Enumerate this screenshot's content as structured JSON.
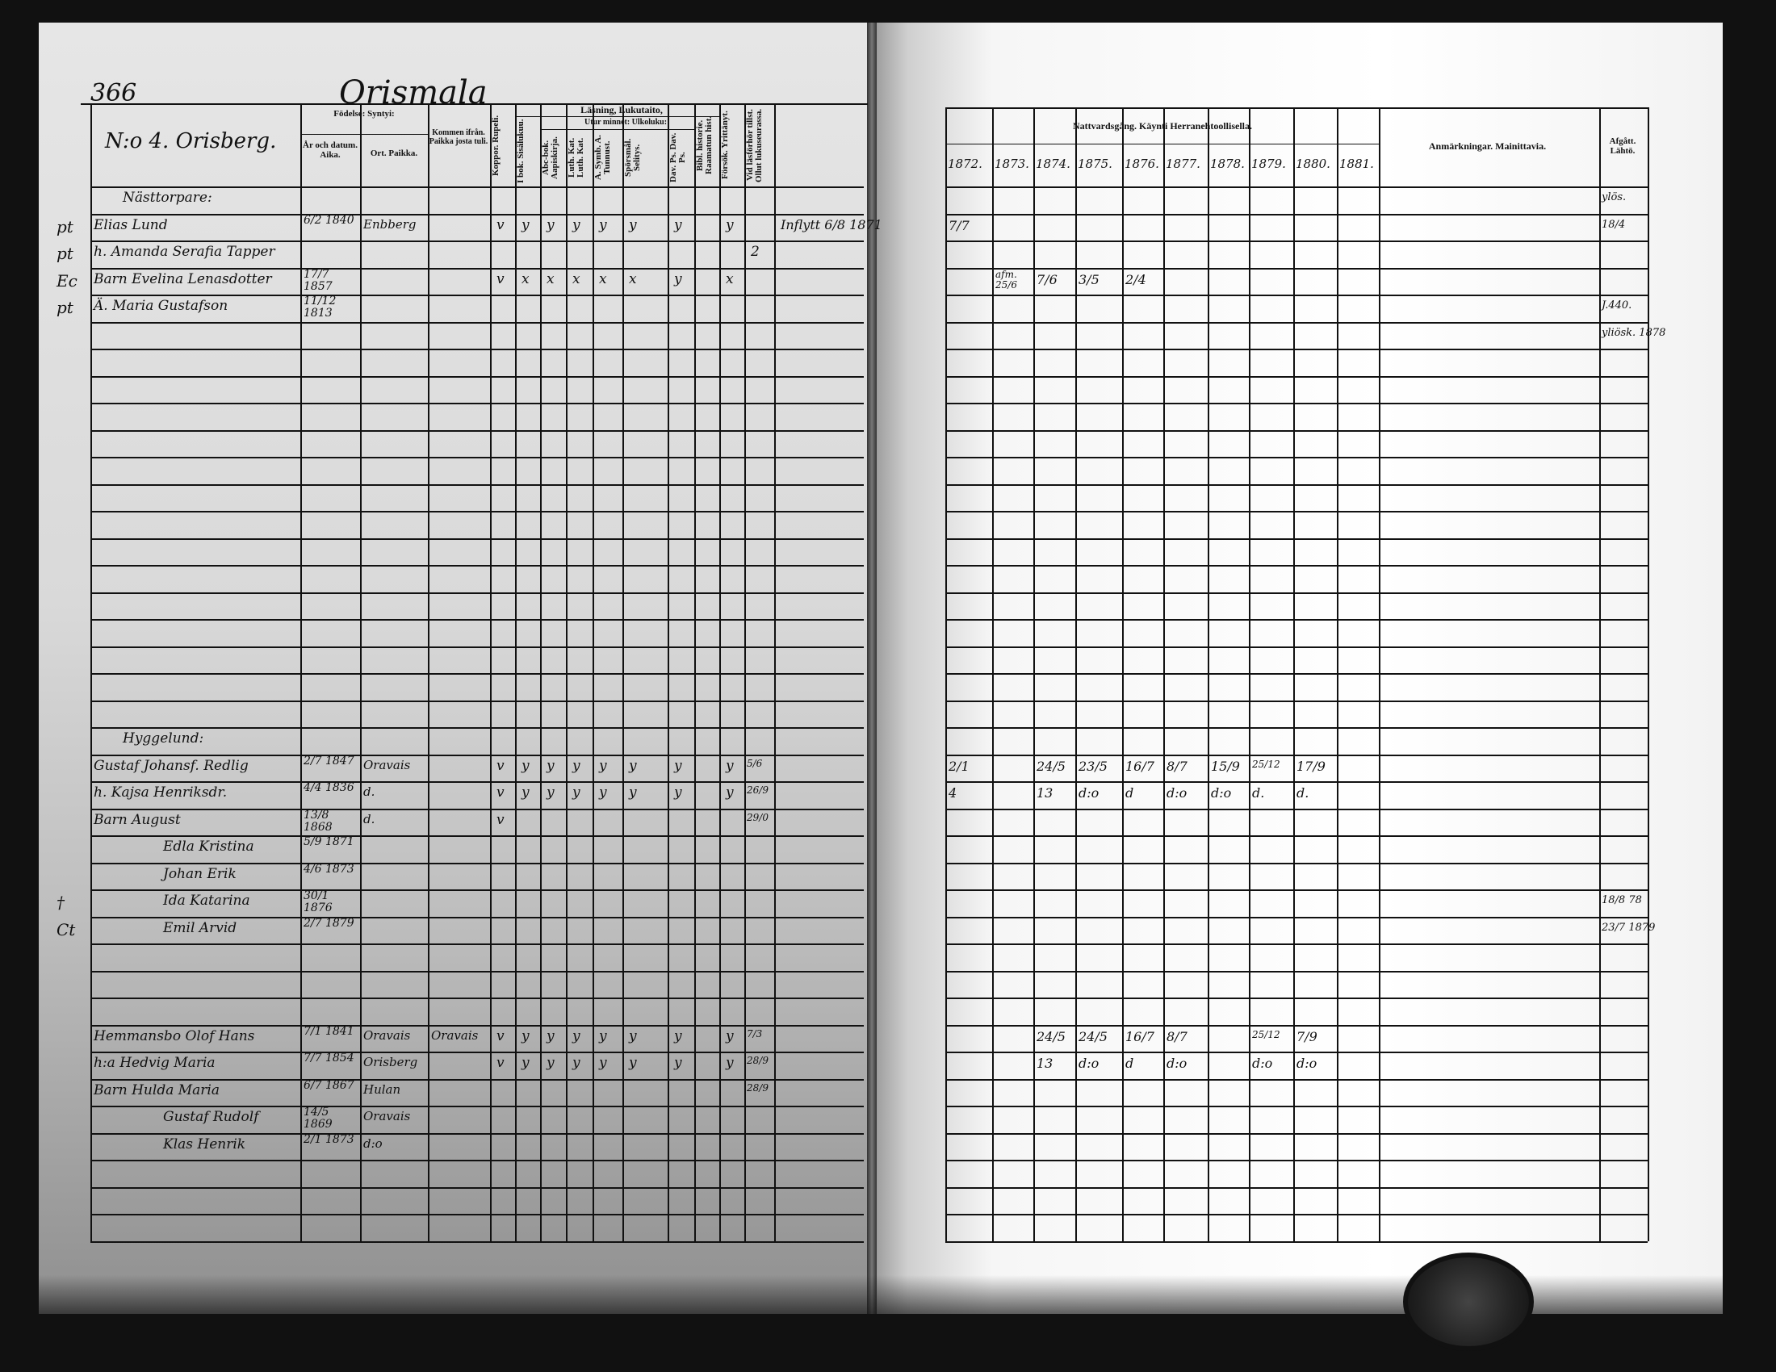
{
  "left_page": {
    "page_number": "366",
    "village": "Orismala",
    "farm": "N:o 4. Orisberg.",
    "headers": {
      "birth": "Födelse:  Syntyi:",
      "year_date": "År och datum. Aika.",
      "place": "Ort. Paikka.",
      "came_from": "Kommen ifrån. Paikka josta tuli.",
      "reading": "Läsning, Lukutaito,",
      "by_heart": "Utur minnet:  Ulkoluku:",
      "narrow_columns": [
        "Koppor. Rupeli.",
        "I bok. Sisälukuu.",
        "Abc-bok. Aapiskirja.",
        "Luth. Kat. Luth. Kat.",
        "A. Symb. A. Tunnust.",
        "Spörsmål. Selitys.",
        "Dav. Ps. Dav. Ps.",
        "Bibl. historie. Raamatun hist.",
        "Försök. Yrittänyt.",
        "Vid läsförhör tillst. Ollut lukuseurassa."
      ]
    },
    "rows": [
      {
        "row": 0,
        "name": "Nästtorpare:"
      },
      {
        "row": 1,
        "margin": "pt",
        "name": "Elias Lund",
        "date": "6/2 1840",
        "place": "Enbberg",
        "marks": [
          "v",
          "y",
          "y",
          "y",
          "y",
          "y",
          "y",
          "",
          "y",
          ""
        ],
        "note": "Inflytt 6/8 1871"
      },
      {
        "row": 2,
        "margin": "pt",
        "name": "h. Amanda Serafia Tapper",
        "marks": [
          "",
          "",
          "",
          "",
          "",
          "",
          "",
          "",
          "",
          "2"
        ]
      },
      {
        "row": 3,
        "margin": "Ec",
        "name": "Barn Evelina Lenasdotter",
        "date": "17/7 1857",
        "marks": [
          "v",
          "x",
          "x",
          "x",
          "x",
          "x",
          "y",
          "",
          "x",
          ""
        ]
      },
      {
        "row": 4,
        "margin": "pt",
        "name": "Ä. Maria Gustafson",
        "date": "11/12 1813"
      },
      {
        "row": 20,
        "name": "Hyggelund:"
      },
      {
        "row": 21,
        "name": "Gustaf Johansf. Redlig",
        "date": "2/7 1847",
        "place": "Oravais",
        "marks": [
          "v",
          "y",
          "y",
          "y",
          "y",
          "y",
          "y",
          "",
          "y",
          "5/6"
        ]
      },
      {
        "row": 22,
        "name": "h. Kajsa Henriksdr.",
        "date": "4/4 1836",
        "place": "d.",
        "marks": [
          "v",
          "y",
          "y",
          "y",
          "y",
          "y",
          "y",
          "",
          "y",
          "26/9"
        ]
      },
      {
        "row": 23,
        "name": "Barn August",
        "date": "13/8 1868",
        "place": "d.",
        "marks": [
          "v",
          "",
          "",
          "",
          "",
          "",
          "",
          "",
          "",
          "29/0"
        ]
      },
      {
        "row": 24,
        "name": "Edla Kristina",
        "date": "5/9 1871"
      },
      {
        "row": 25,
        "name": "Johan Erik",
        "date": "4/6 1873"
      },
      {
        "row": 26,
        "margin": "†",
        "name": "Ida Katarina",
        "date": "30/1 1876"
      },
      {
        "row": 27,
        "margin": "Ct",
        "name": "Emil Arvid",
        "date": "2/7 1879"
      },
      {
        "row": 31,
        "name": "Hemmansbo Olof Hans",
        "date": "7/1 1841",
        "place": "Oravais",
        "from": "Oravais",
        "marks": [
          "v",
          "y",
          "y",
          "y",
          "y",
          "y",
          "y",
          "",
          "y",
          "7/3"
        ]
      },
      {
        "row": 32,
        "name": "h:a Hedvig Maria",
        "date": "7/7 1854",
        "place": "Orisberg",
        "marks": [
          "v",
          "y",
          "y",
          "y",
          "y",
          "y",
          "y",
          "",
          "y",
          "28/9"
        ]
      },
      {
        "row": 33,
        "name": "Barn Hulda Maria",
        "date": "6/7 1867",
        "place": "Hulan",
        "marks": [
          "",
          "",
          "",
          "",
          "",
          "",
          "",
          "",
          "",
          "28/9"
        ]
      },
      {
        "row": 34,
        "name": "Gustaf Rudolf",
        "date": "14/5 1869",
        "place": "Oravais"
      },
      {
        "row": 35,
        "name": "Klas Henrik",
        "date": "2/1 1873",
        "place": "d:o"
      }
    ]
  },
  "right_page": {
    "headers": {
      "communion": "Nattvardsgång.  Käynti Herranehtoollisella.",
      "years": [
        "1872.",
        "1873.",
        "1874.",
        "1875.",
        "1876.",
        "1877.",
        "1878.",
        "1879.",
        "1880.",
        "1881."
      ],
      "remarks": "Anmärkningar.  Mainittavia.",
      "departed": "Afgått. Lähtö."
    },
    "rows": [
      {
        "row": 0,
        "departed": "ylös."
      },
      {
        "row": 1,
        "communion": [
          "7/7",
          "",
          "",
          "",
          "",
          "",
          "",
          "",
          "",
          ""
        ],
        "departed": "18/4"
      },
      {
        "row": 3,
        "communion": [
          "",
          "afm. 25/6",
          "7/6",
          "3/5",
          "2/4",
          "",
          "",
          "",
          "",
          ""
        ]
      },
      {
        "row": 4,
        "departed": "J.440."
      },
      {
        "row": 5,
        "departed": "yliösk. 1878"
      },
      {
        "row": 21,
        "communion": [
          "2/1",
          "",
          "24/5",
          "23/5",
          "16/7",
          "8/7",
          "15/9",
          "25/12",
          "17/9",
          ""
        ]
      },
      {
        "row": 22,
        "communion": [
          "4",
          "",
          "13",
          "d:o",
          "d",
          "d:o",
          "d:o",
          "d.",
          "d.",
          ""
        ]
      },
      {
        "row": 26,
        "departed": "18/8 78"
      },
      {
        "row": 27,
        "departed": "23/7 1879"
      },
      {
        "row": 31,
        "communion": [
          "",
          "",
          "24/5",
          "24/5",
          "16/7",
          "8/7",
          "",
          "25/12",
          "7/9",
          ""
        ]
      },
      {
        "row": 32,
        "communion": [
          "",
          "",
          "13",
          "d:o",
          "d",
          "d:o",
          "",
          "d:o",
          "d:o",
          ""
        ]
      }
    ]
  },
  "stamp": {
    "text": ""
  }
}
